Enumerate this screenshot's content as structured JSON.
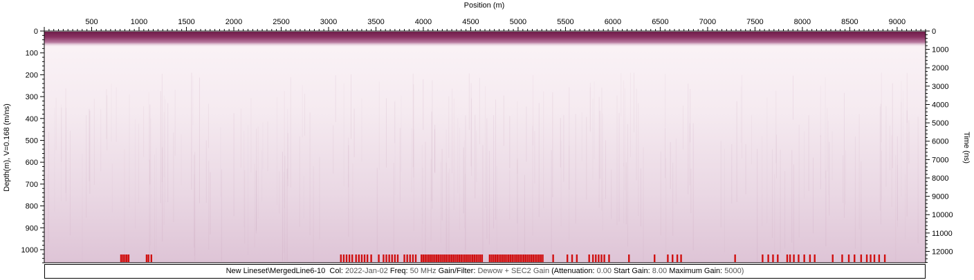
{
  "chart_data": {
    "type": "heatmap",
    "title": "",
    "xlabel": "Position (m)",
    "ylabel_left": "Depth(m), V=0.168 (m/ns)",
    "ylabel_right": "Time (ns)",
    "xlim": [
      0,
      9300
    ],
    "ylim_depth": [
      0,
      1060
    ],
    "ylim_time": [
      0,
      12620
    ],
    "x_ticks": [
      500,
      1000,
      1500,
      2000,
      2500,
      3000,
      3500,
      4000,
      4500,
      5000,
      5500,
      6000,
      6500,
      7000,
      7500,
      8000,
      8500,
      9000
    ],
    "depth_ticks": [
      0,
      100,
      200,
      300,
      400,
      500,
      600,
      700,
      800,
      900,
      1000
    ],
    "time_ticks": [
      0,
      1000,
      2000,
      3000,
      4000,
      5000,
      6000,
      7000,
      8000,
      9000,
      10000,
      11000,
      12000
    ],
    "grid": false,
    "colormap": [
      "#fbf4f7",
      "#e9d6e4",
      "#7a2050"
    ],
    "marker_color": "#d01010",
    "marker_positions": [
      810,
      830,
      850,
      870,
      890,
      1080,
      1100,
      1130,
      3130,
      3160,
      3190,
      3220,
      3250,
      3290,
      3320,
      3350,
      3380,
      3410,
      3450,
      3530,
      3580,
      3610,
      3640,
      3670,
      3700,
      3730,
      3800,
      3830,
      3860,
      3890,
      3920,
      3980,
      4000,
      4020,
      4040,
      4060,
      4080,
      4100,
      4120,
      4140,
      4160,
      4180,
      4200,
      4220,
      4240,
      4260,
      4280,
      4300,
      4320,
      4340,
      4360,
      4380,
      4400,
      4420,
      4440,
      4460,
      4480,
      4500,
      4520,
      4540,
      4560,
      4580,
      4600,
      4620,
      4700,
      4720,
      4740,
      4760,
      4780,
      4800,
      4820,
      4840,
      4860,
      4880,
      4900,
      4920,
      4940,
      4960,
      4980,
      5000,
      5020,
      5040,
      5060,
      5080,
      5100,
      5120,
      5140,
      5160,
      5180,
      5200,
      5220,
      5240,
      5260,
      5370,
      5520,
      5570,
      5620,
      5750,
      5790,
      5820,
      5850,
      5880,
      5910,
      5960,
      6170,
      6440,
      6580,
      6630,
      6680,
      6720,
      7290,
      7580,
      7640,
      7690,
      7740,
      7840,
      7870,
      7910,
      7960,
      8020,
      8080,
      8130,
      8320,
      8420,
      8490,
      8550,
      8620,
      8680,
      8720,
      8760,
      8810,
      8870
    ]
  },
  "annotation": {
    "line": "New Lineset\\MergedLine6-10",
    "col_label": "Col:",
    "col_value": "2022-Jan-02",
    "freq_label": "Freq:",
    "freq_value": "50 MHz",
    "gain_label": "Gain/Filter:",
    "gain_value": "Dewow + SEC2 Gain",
    "attenuation_label": "(Attenuation:",
    "attenuation_value": "0.00",
    "start_gain_label": "Start Gain:",
    "start_gain_value": "8.00",
    "max_gain_label": "Maximum Gain:",
    "max_gain_value": "5000)"
  }
}
